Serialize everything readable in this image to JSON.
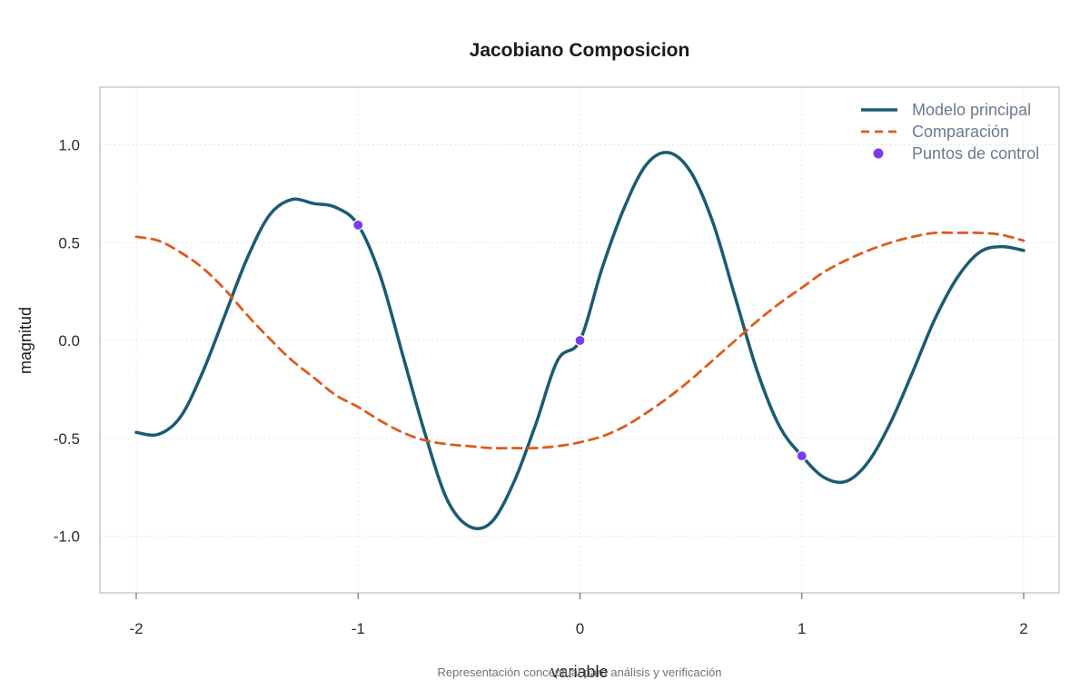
{
  "chart_data": {
    "type": "line",
    "title": "Jacobiano Composicion",
    "xlabel": "variable",
    "ylabel": "magnitud",
    "caption": "Representación conceptual para análisis y verificación",
    "xlim": [
      -2.1,
      2.1
    ],
    "ylim": [
      -1.3,
      1.3
    ],
    "x_ticks": [
      -2,
      -1,
      0,
      1,
      2
    ],
    "x_tick_labels": [
      "-2",
      "-1",
      "0",
      "1",
      "2"
    ],
    "y_ticks": [
      -1.0,
      -0.5,
      0.0,
      0.5,
      1.0
    ],
    "y_tick_labels": [
      "-1.0",
      "-0.5",
      "0.0",
      "0.5",
      "1.0"
    ],
    "grid": true,
    "legend_position": "top-right",
    "x": [
      -2.0,
      -1.9,
      -1.8,
      -1.7,
      -1.6,
      -1.5,
      -1.4,
      -1.3,
      -1.2,
      -1.1,
      -1.0,
      -0.9,
      -0.8,
      -0.7,
      -0.6,
      -0.5,
      -0.4,
      -0.3,
      -0.2,
      -0.1,
      0.0,
      0.1,
      0.2,
      0.3,
      0.4,
      0.5,
      0.6,
      0.7,
      0.8,
      0.9,
      1.0,
      1.1,
      1.2,
      1.3,
      1.4,
      1.5,
      1.6,
      1.7,
      1.8,
      1.9,
      2.0
    ],
    "series": [
      {
        "name": "Modelo principal",
        "style": "solid",
        "color": "#1b5b72",
        "values": [
          -0.47,
          -0.48,
          -0.39,
          -0.16,
          0.13,
          0.42,
          0.64,
          0.72,
          0.7,
          0.68,
          0.59,
          0.33,
          -0.07,
          -0.47,
          -0.81,
          -0.95,
          -0.93,
          -0.73,
          -0.43,
          -0.1,
          0.0,
          0.37,
          0.68,
          0.9,
          0.96,
          0.86,
          0.6,
          0.22,
          -0.16,
          -0.44,
          -0.59,
          -0.7,
          -0.72,
          -0.62,
          -0.42,
          -0.16,
          0.11,
          0.32,
          0.45,
          0.48,
          0.46
        ]
      },
      {
        "name": "Comparación",
        "style": "dashed",
        "color": "#e05a1b",
        "values": [
          0.53,
          0.51,
          0.45,
          0.37,
          0.26,
          0.13,
          0.01,
          -0.1,
          -0.19,
          -0.28,
          -0.34,
          -0.41,
          -0.47,
          -0.51,
          -0.53,
          -0.54,
          -0.55,
          -0.55,
          -0.55,
          -0.54,
          -0.52,
          -0.49,
          -0.44,
          -0.37,
          -0.29,
          -0.2,
          -0.1,
          0.0,
          0.1,
          0.19,
          0.27,
          0.35,
          0.41,
          0.46,
          0.5,
          0.53,
          0.55,
          0.55,
          0.55,
          0.54,
          0.51
        ]
      }
    ],
    "points": {
      "name": "Puntos de control",
      "color": "#7c3aed",
      "x": [
        -1,
        0,
        1
      ],
      "y": [
        0.59,
        0.0,
        -0.59
      ]
    }
  }
}
